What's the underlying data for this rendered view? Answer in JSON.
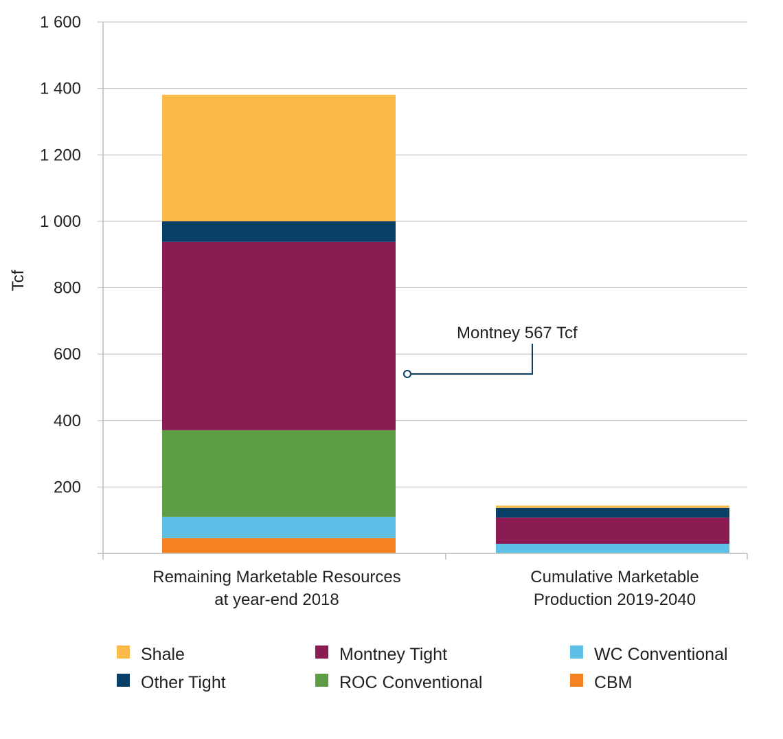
{
  "chart_data": {
    "type": "bar",
    "stacked": true,
    "ylabel": "Tcf",
    "ylim": [
      0,
      1600
    ],
    "yticks": [
      200,
      400,
      600,
      800,
      1000,
      1200,
      1400,
      1600
    ],
    "ytick_labels": [
      "200",
      "400",
      "600",
      "800",
      "1 000",
      "1 200",
      "1 400",
      "1 600"
    ],
    "grid": true,
    "categories": [
      [
        "Remaining Marketable Resources",
        "at year-end 2018"
      ],
      [
        "Cumulative Marketable",
        "Production 2019-2040"
      ]
    ],
    "series": [
      {
        "name": "CBM",
        "color": "#f58220",
        "values": [
          46,
          0
        ]
      },
      {
        "name": "WC Conventional",
        "color": "#5dc0e6",
        "values": [
          64,
          29
        ]
      },
      {
        "name": "ROC Conventional",
        "color": "#5c9d45",
        "values": [
          261,
          0
        ]
      },
      {
        "name": "Montney Tight",
        "color": "#8a1c53",
        "values": [
          567,
          79
        ]
      },
      {
        "name": "Other Tight",
        "color": "#073f66",
        "values": [
          62,
          29
        ]
      },
      {
        "name": "Shale",
        "color": "#fbbb4b",
        "values": [
          381,
          7
        ]
      }
    ],
    "legend": {
      "placement": "bottom",
      "order": [
        "Shale",
        "Other Tight",
        "Montney Tight",
        "ROC Conventional",
        "WC Conventional",
        "CBM"
      ]
    },
    "annotation": {
      "text": "Montney 567 Tcf",
      "target_series": "Montney Tight",
      "target_category": 0
    }
  }
}
